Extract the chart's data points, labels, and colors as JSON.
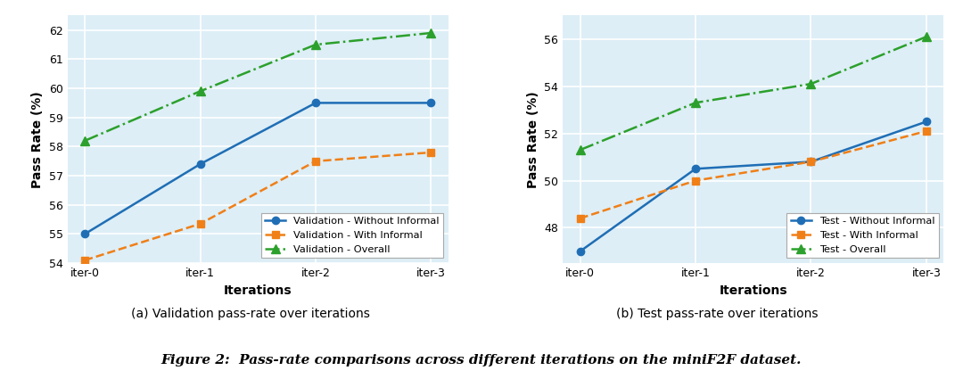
{
  "iterations": [
    "iter-0",
    "iter-1",
    "iter-2",
    "iter-3"
  ],
  "val_without_informal": [
    55.0,
    57.4,
    59.5,
    59.5
  ],
  "val_with_informal": [
    54.1,
    55.35,
    57.5,
    57.8
  ],
  "val_overall": [
    58.2,
    59.9,
    61.5,
    61.9
  ],
  "test_without_informal": [
    47.0,
    50.5,
    50.8,
    52.5
  ],
  "test_with_informal": [
    48.4,
    50.0,
    50.8,
    52.1
  ],
  "test_overall": [
    51.3,
    53.3,
    54.1,
    56.1
  ],
  "color_blue": "#1f6eb5",
  "color_orange": "#f07f17",
  "color_green": "#2ca02c",
  "bg_color": "#ddeef6",
  "val_ylim": [
    54.0,
    62.5
  ],
  "val_yticks": [
    54,
    55,
    56,
    57,
    58,
    59,
    60,
    61,
    62
  ],
  "test_ylim": [
    46.5,
    57.0
  ],
  "test_yticks": [
    48,
    50,
    52,
    54,
    56
  ],
  "xlabel": "Iterations",
  "ylabel": "Pass Rate (%)",
  "caption_a": "(a) Validation pass-rate over iterations",
  "caption_b": "(b) Test pass-rate over iterations",
  "figure_title": "Figure 2:  Pass-rate comparisons across different iterations on the miniF2F dataset."
}
